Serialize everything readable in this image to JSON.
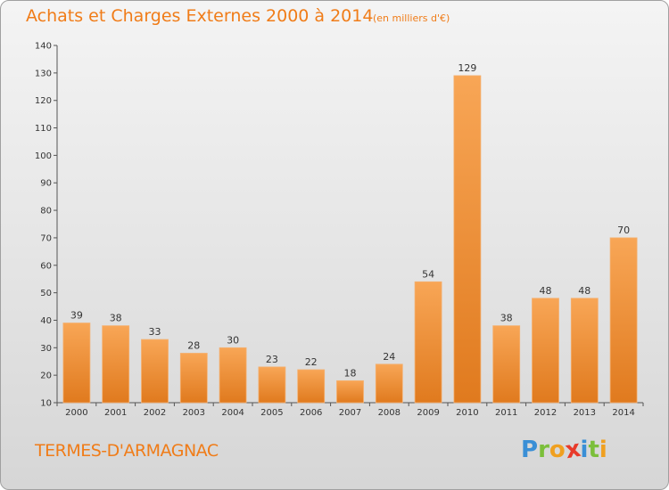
{
  "title": "Achats et Charges Externes 2000 à 2014",
  "subtitle": "(en milliers d'€)",
  "commune": "TERMES-D'ARMAGNAC",
  "logo": {
    "letters": [
      "P",
      "r",
      "o",
      "x",
      "i",
      "t",
      "i"
    ],
    "colors": [
      "#3a8fd6",
      "#7bbf3a",
      "#f0a020",
      "#e83a2a",
      "#3a8fd6",
      "#7bbf3a",
      "#f0a020"
    ]
  },
  "chart_data": {
    "type": "bar",
    "title": "Achats et Charges Externes 2000 à 2014",
    "subtitle": "(en milliers d'€)",
    "categories": [
      "2000",
      "2001",
      "2002",
      "2003",
      "2004",
      "2005",
      "2006",
      "2007",
      "2008",
      "2009",
      "2010",
      "2011",
      "2012",
      "2013",
      "2014"
    ],
    "values": [
      39,
      38,
      33,
      28,
      30,
      23,
      22,
      18,
      24,
      54,
      129,
      38,
      48,
      48,
      70
    ],
    "ylim": [
      10,
      140
    ],
    "yticks": [
      10,
      20,
      30,
      40,
      50,
      60,
      70,
      80,
      90,
      100,
      110,
      120,
      130,
      140
    ],
    "grid": false,
    "bar_color": "#f0922e",
    "bar_color_dark": "#d86c14"
  }
}
